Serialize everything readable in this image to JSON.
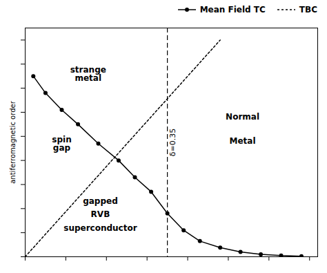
{
  "chart_data": {
    "type": "line",
    "color": "#000000",
    "ylabel": "antiferromagnetic order",
    "xlim": [
      0.0,
      0.72
    ],
    "ylim": [
      0.0,
      0.95
    ],
    "xticks": [
      0,
      0.1,
      0.2,
      0.3,
      0.4,
      0.5,
      0.6,
      0.7
    ],
    "yticks": [
      0,
      0.1,
      0.2,
      0.3,
      0.4,
      0.5,
      0.6,
      0.7,
      0.8,
      0.9
    ],
    "tick_labels": false,
    "legend": "upper right",
    "series": [
      {
        "name": "Mean Field TC",
        "marker": "circle",
        "line_style": "solid",
        "x": [
          0.02,
          0.05,
          0.09,
          0.13,
          0.18,
          0.23,
          0.27,
          0.31,
          0.35,
          0.39,
          0.43,
          0.48,
          0.53,
          0.58,
          0.63,
          0.68
        ],
        "values": [
          0.75,
          0.68,
          0.61,
          0.55,
          0.47,
          0.4,
          0.33,
          0.27,
          0.18,
          0.11,
          0.065,
          0.038,
          0.02,
          0.01,
          0.005,
          0.002
        ]
      },
      {
        "name": "TBC",
        "marker": "none",
        "line_style": "dotted",
        "x": [
          0.0,
          0.48
        ],
        "values": [
          0.0,
          0.9
        ]
      }
    ],
    "reference_lines": [
      {
        "x": 0.35,
        "label": "δ=0.35",
        "line_style": "dashed"
      }
    ],
    "annotations": [
      {
        "text": "strange\nmetal",
        "x": 0.155,
        "y": 0.76
      },
      {
        "text": "spin\ngap",
        "x": 0.09,
        "y": 0.47
      },
      {
        "text": "gapped",
        "x": 0.185,
        "y": 0.23
      },
      {
        "text": "RVB",
        "x": 0.185,
        "y": 0.175
      },
      {
        "text": "superconductor",
        "x": 0.185,
        "y": 0.12
      },
      {
        "text": "Normal",
        "x": 0.535,
        "y": 0.58
      },
      {
        "text": "Metal",
        "x": 0.535,
        "y": 0.48
      }
    ]
  }
}
